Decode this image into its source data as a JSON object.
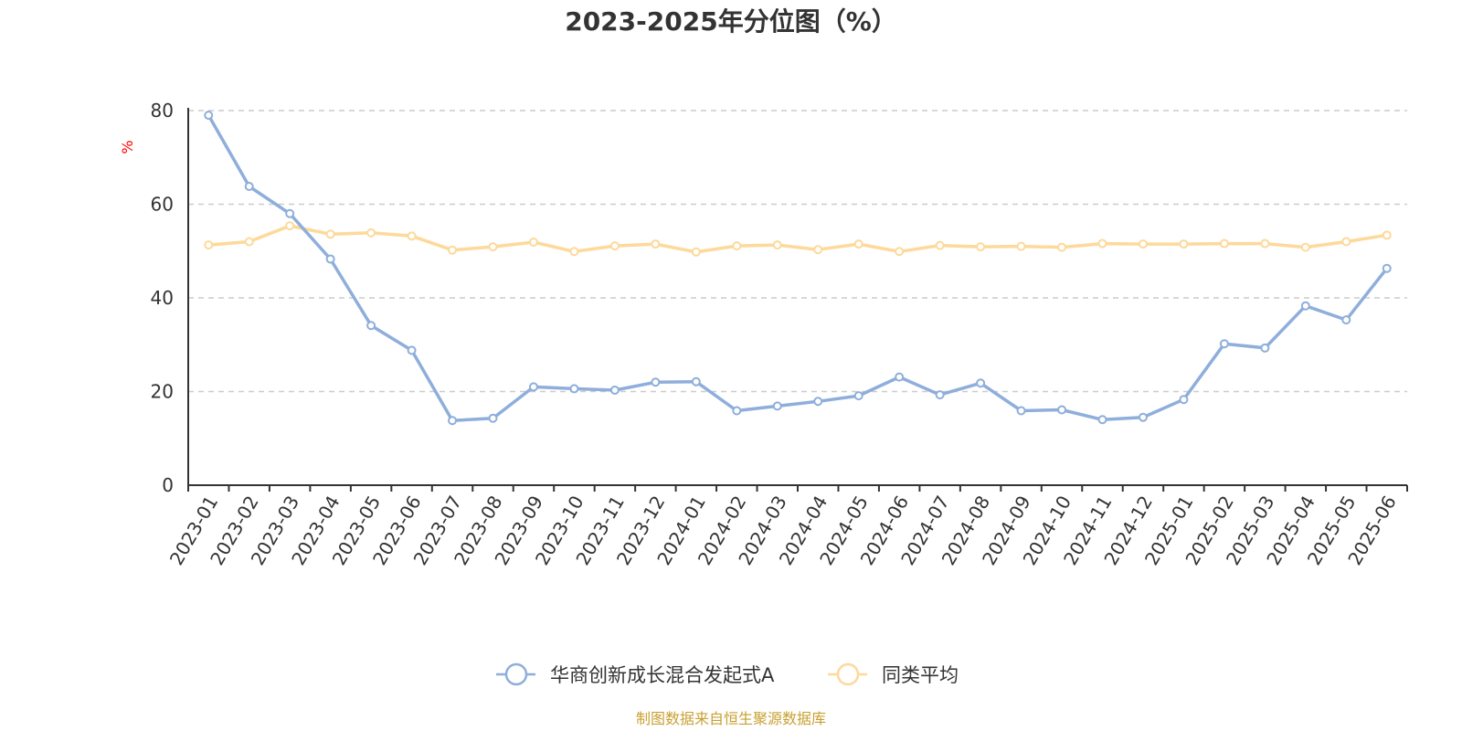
{
  "colors": {
    "series_fund": "#8eaedb",
    "series_avg": "#fdd99a",
    "axis": "#333333",
    "grid": "#cccccc",
    "unit": "#ff0000",
    "source": "#c8a032"
  },
  "chart_data": {
    "type": "line",
    "title": "2023-2025年分位图（%）",
    "ylabel": "%",
    "ylim": [
      0,
      80
    ],
    "yticks": [
      0,
      20,
      40,
      60,
      80
    ],
    "grid": true,
    "legend_position": "bottom-center",
    "categories": [
      "2023-01",
      "2023-02",
      "2023-03",
      "2023-04",
      "2023-05",
      "2023-06",
      "2023-07",
      "2023-08",
      "2023-09",
      "2023-10",
      "2023-11",
      "2023-12",
      "2024-01",
      "2024-02",
      "2024-03",
      "2024-04",
      "2024-05",
      "2024-06",
      "2024-07",
      "2024-08",
      "2024-09",
      "2024-10",
      "2024-11",
      "2024-12",
      "2025-01",
      "2025-02",
      "2025-03",
      "2025-04",
      "2025-05",
      "2025-06"
    ],
    "series": [
      {
        "name": "华商创新成长混合发起式A",
        "values": [
          79.0,
          63.8,
          58.0,
          48.3,
          34.1,
          28.8,
          13.8,
          14.3,
          21.0,
          20.6,
          20.3,
          22.0,
          22.1,
          15.9,
          16.9,
          17.9,
          19.1,
          23.1,
          19.3,
          21.8,
          15.9,
          16.1,
          14.0,
          14.5,
          18.3,
          30.2,
          29.3,
          38.3,
          35.3,
          46.3
        ]
      },
      {
        "name": "同类平均",
        "values": [
          51.3,
          52.0,
          55.4,
          53.6,
          53.9,
          53.2,
          50.2,
          50.9,
          51.9,
          49.9,
          51.1,
          51.5,
          49.8,
          51.1,
          51.3,
          50.3,
          51.5,
          49.9,
          51.2,
          50.9,
          51.0,
          50.8,
          51.6,
          51.5,
          51.5,
          51.6,
          51.6,
          50.8,
          52.0,
          53.4
        ]
      }
    ]
  },
  "source_text": "制图数据来自恒生聚源数据库"
}
